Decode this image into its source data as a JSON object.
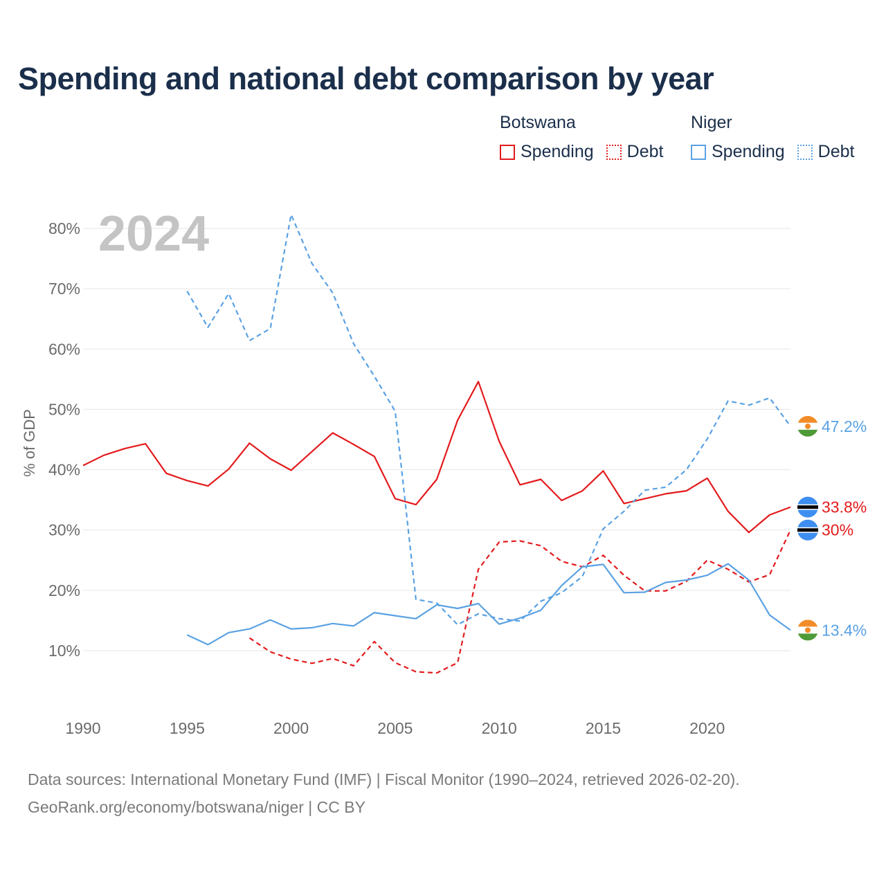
{
  "title": "Spending and national debt comparison by year",
  "legend": {
    "groups": [
      {
        "name": "Botswana",
        "color": "#e31a1c",
        "items": [
          {
            "label": "Spending",
            "style": "solid"
          },
          {
            "label": "Debt",
            "style": "dotted"
          }
        ]
      },
      {
        "name": "Niger",
        "color": "#5aa1e3",
        "items": [
          {
            "label": "Spending",
            "style": "solid"
          },
          {
            "label": "Debt",
            "style": "dotted"
          }
        ]
      }
    ]
  },
  "year_label": "2024",
  "source": {
    "line1": "Data sources: International Monetary Fund (IMF) | Fiscal Monitor (1990–2024, retrieved 2026-02-20).",
    "line2": "GeoRank.org/economy/botswana/niger | CC BY"
  },
  "chart_data": {
    "type": "line",
    "title": "Spending and national debt comparison by year",
    "xlabel": "",
    "ylabel": "% of GDP",
    "xlim": [
      1990,
      2024
    ],
    "ylim": [
      0,
      85
    ],
    "x_ticks": [
      1990,
      1995,
      2000,
      2005,
      2010,
      2015,
      2020
    ],
    "y_ticks": [
      10,
      20,
      30,
      40,
      50,
      60,
      70,
      80
    ],
    "y_tick_labels": [
      "10%",
      "20%",
      "30%",
      "40%",
      "50%",
      "60%",
      "70%",
      "80%"
    ],
    "grid": true,
    "series": [
      {
        "name": "Botswana Spending",
        "country": "Botswana",
        "measure": "Spending",
        "color": "#e31a1c",
        "dash": false,
        "x": [
          1990,
          1991,
          1992,
          1993,
          1994,
          1995,
          1996,
          1997,
          1998,
          1999,
          2000,
          2001,
          2002,
          2003,
          2004,
          2005,
          2006,
          2007,
          2008,
          2009,
          2010,
          2011,
          2012,
          2013,
          2014,
          2015,
          2016,
          2017,
          2018,
          2019,
          2020,
          2021,
          2022,
          2023,
          2024
        ],
        "values": [
          40.7,
          42.4,
          43.5,
          44.3,
          39.4,
          38.2,
          37.3,
          40.1,
          44.4,
          41.8,
          39.9,
          43.0,
          46.1,
          44.2,
          42.2,
          35.2,
          34.2,
          38.4,
          48.2,
          54.6,
          44.7,
          37.5,
          38.4,
          34.9,
          36.5,
          39.8,
          34.4,
          35.2,
          36.0,
          36.5,
          38.6,
          33.1,
          29.6,
          32.5,
          33.8
        ],
        "end_label": "33.8%",
        "flag": "botswana"
      },
      {
        "name": "Botswana Debt",
        "country": "Botswana",
        "measure": "Debt",
        "color": "#e31a1c",
        "dash": true,
        "x": [
          1998,
          1999,
          2000,
          2001,
          2002,
          2003,
          2004,
          2005,
          2006,
          2007,
          2008,
          2009,
          2010,
          2011,
          2012,
          2013,
          2014,
          2015,
          2016,
          2017,
          2018,
          2019,
          2020,
          2021,
          2022,
          2023,
          2024
        ],
        "values": [
          12.1,
          9.8,
          8.6,
          7.9,
          8.7,
          7.5,
          11.5,
          8.0,
          6.5,
          6.3,
          8.0,
          23.5,
          28.0,
          28.2,
          27.4,
          24.8,
          23.9,
          25.8,
          22.5,
          19.9,
          19.9,
          21.5,
          25.0,
          23.5,
          21.4,
          22.6,
          30.0
        ],
        "end_label": "30%",
        "flag": "botswana"
      },
      {
        "name": "Niger Spending",
        "country": "Niger",
        "measure": "Spending",
        "color": "#5aa1e3",
        "dash": false,
        "x": [
          1995,
          1996,
          1997,
          1998,
          1999,
          2000,
          2001,
          2002,
          2003,
          2004,
          2005,
          2006,
          2007,
          2008,
          2009,
          2010,
          2011,
          2012,
          2013,
          2014,
          2015,
          2016,
          2017,
          2018,
          2019,
          2020,
          2021,
          2022,
          2023,
          2024
        ],
        "values": [
          12.6,
          11.0,
          13.0,
          13.6,
          15.1,
          13.6,
          13.8,
          14.5,
          14.1,
          16.3,
          15.8,
          15.3,
          17.6,
          17.0,
          17.8,
          14.4,
          15.4,
          16.7,
          20.8,
          23.9,
          24.3,
          19.6,
          19.7,
          21.3,
          21.7,
          22.5,
          24.4,
          21.7,
          15.9,
          13.4
        ],
        "end_label": "13.4%",
        "flag": "niger"
      },
      {
        "name": "Niger Debt",
        "country": "Niger",
        "measure": "Debt",
        "color": "#5aa1e3",
        "dash": true,
        "x": [
          1995,
          1996,
          1997,
          1998,
          1999,
          2000,
          2001,
          2002,
          2003,
          2004,
          2005,
          2006,
          2007,
          2008,
          2009,
          2010,
          2011,
          2012,
          2013,
          2014,
          2015,
          2016,
          2017,
          2018,
          2019,
          2020,
          2021,
          2022,
          2023,
          2024
        ],
        "values": [
          69.6,
          63.6,
          69.2,
          61.4,
          63.4,
          82.3,
          74.2,
          69.3,
          60.9,
          55.5,
          49.7,
          18.5,
          17.9,
          14.3,
          16.1,
          15.3,
          14.9,
          18.2,
          19.6,
          22.3,
          30.2,
          33.1,
          36.6,
          37.1,
          40.0,
          45.1,
          51.4,
          50.7,
          51.9,
          47.2
        ],
        "end_label": "47.2%",
        "flag": "niger"
      }
    ]
  },
  "colors": {
    "botswana": "#e31a1c",
    "niger": "#5aa1e3",
    "grid": "#e6e6e6",
    "axis_text": "#6b6b6b",
    "title": "#1b2f4b",
    "year_label": "#c4c4c4"
  }
}
